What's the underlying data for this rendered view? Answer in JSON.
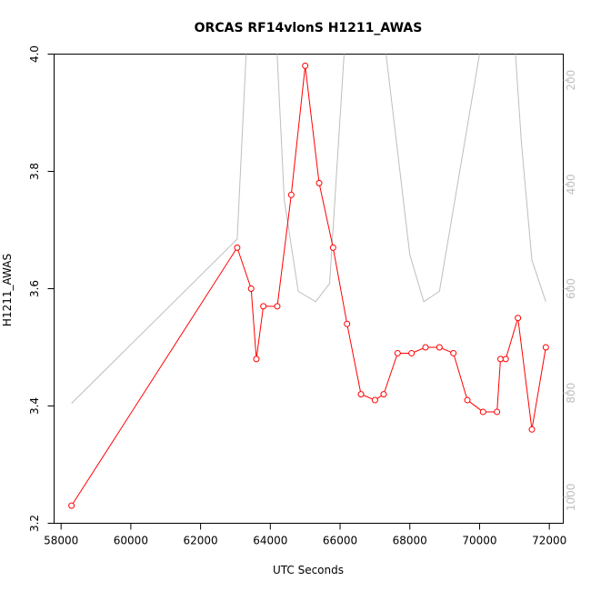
{
  "chart_data": {
    "type": "line",
    "title": "ORCAS RF14vlonS H1211_AWAS",
    "xlabel": "UTC Seconds",
    "ylabel": "H1211_AWAS",
    "xlim": [
      57800,
      72400
    ],
    "ylim": [
      3.2,
      4.0
    ],
    "x_ticks": [
      "58000",
      "60000",
      "62000",
      "64000",
      "66000",
      "68000",
      "70000",
      "72000"
    ],
    "y_ticks": [
      "3.2",
      "3.4",
      "3.6",
      "3.8",
      "4.0"
    ],
    "right_axis": {
      "reversed": true,
      "range": [
        1050,
        150
      ],
      "ticks": [
        "200",
        "400",
        "600",
        "800",
        "1000"
      ],
      "color": "#bebebe"
    },
    "grid": false,
    "legend": "none",
    "series": [
      {
        "color": "#ff0000",
        "markers": "open-circle",
        "points": [
          [
            58300,
            3.23
          ],
          [
            63050,
            3.67
          ],
          [
            63450,
            3.6
          ],
          [
            63600,
            3.48
          ],
          [
            63800,
            3.57
          ],
          [
            64200,
            3.57
          ],
          [
            64600,
            3.76
          ],
          [
            65000,
            3.98
          ],
          [
            65400,
            3.78
          ],
          [
            65800,
            3.67
          ],
          [
            66200,
            3.54
          ],
          [
            66600,
            3.42
          ],
          [
            67000,
            3.41
          ],
          [
            67250,
            3.42
          ],
          [
            67650,
            3.49
          ],
          [
            68050,
            3.49
          ],
          [
            68450,
            3.5
          ],
          [
            68850,
            3.5
          ],
          [
            69250,
            3.49
          ],
          [
            69650,
            3.41
          ],
          [
            70100,
            3.39
          ],
          [
            70500,
            3.39
          ],
          [
            70600,
            3.48
          ],
          [
            70750,
            3.48
          ],
          [
            71100,
            3.55
          ],
          [
            71500,
            3.36
          ],
          [
            71900,
            3.5
          ]
        ]
      },
      {
        "axis": "right",
        "color": "#bebebe",
        "markers": "none",
        "points": [
          [
            58300,
            820
          ],
          [
            63050,
            505
          ],
          [
            63400,
            20
          ],
          [
            64100,
            20
          ],
          [
            64400,
            430
          ],
          [
            64800,
            605
          ],
          [
            65300,
            625
          ],
          [
            65700,
            590
          ],
          [
            66200,
            60
          ],
          [
            66700,
            20
          ],
          [
            67150,
            55
          ],
          [
            68000,
            535
          ],
          [
            68400,
            625
          ],
          [
            68850,
            605
          ],
          [
            70100,
            110
          ],
          [
            70200,
            20
          ],
          [
            70900,
            20
          ],
          [
            71200,
            320
          ],
          [
            71500,
            545
          ],
          [
            71900,
            625
          ]
        ]
      }
    ]
  }
}
